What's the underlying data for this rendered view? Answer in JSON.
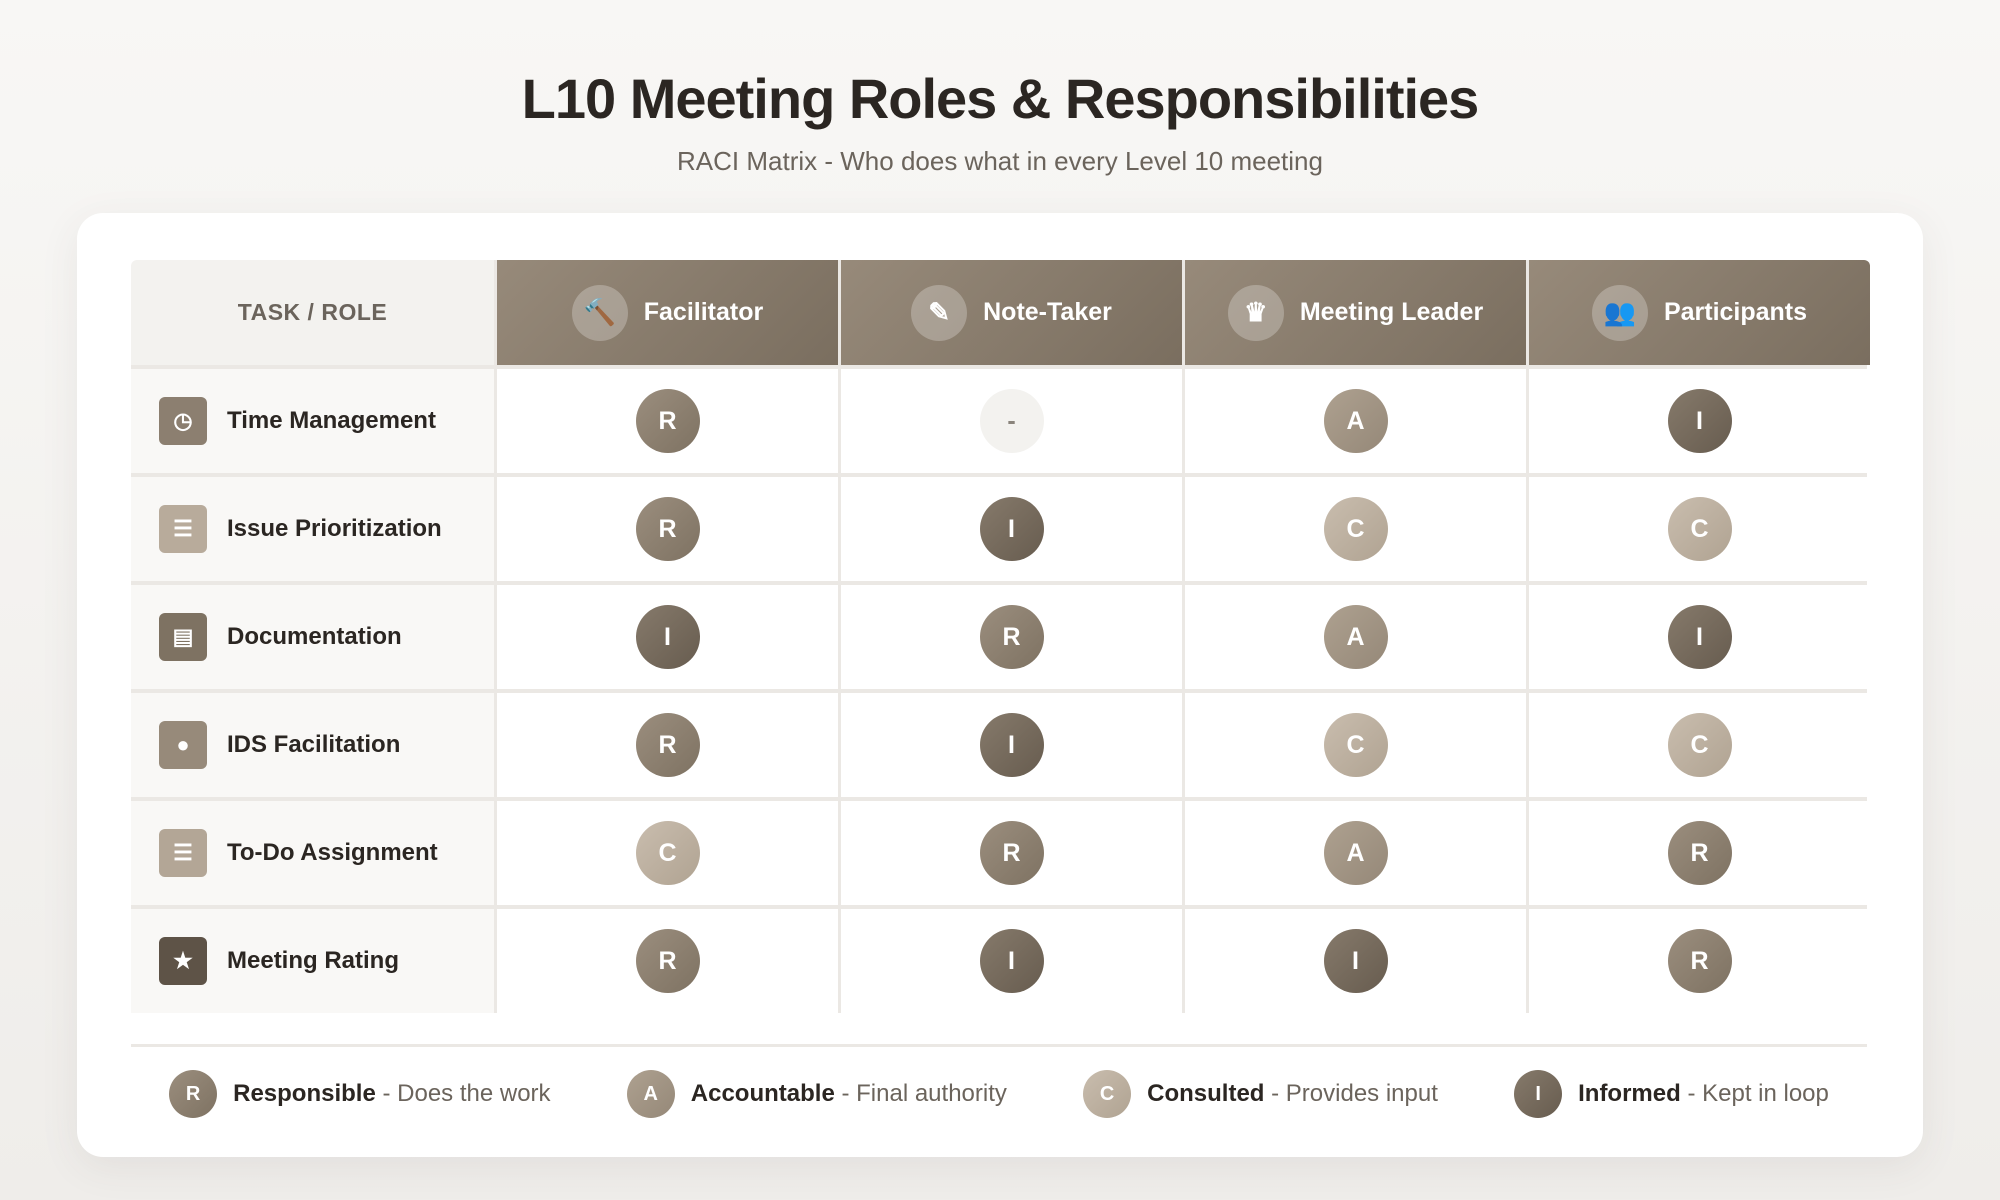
{
  "title": "L10 Meeting Roles & Responsibilities",
  "subtitle": "RACI Matrix - Who does what in every Level 10 meeting",
  "header": {
    "task_label": "TASK / ROLE",
    "roles": [
      {
        "label": "Facilitator",
        "icon": "gavel-icon",
        "glyph": "🔨"
      },
      {
        "label": "Note-Taker",
        "icon": "pencil-icon",
        "glyph": "✎"
      },
      {
        "label": "Meeting Leader",
        "icon": "crown-icon",
        "glyph": "♛"
      },
      {
        "label": "Participants",
        "icon": "users-icon",
        "glyph": "👥"
      }
    ]
  },
  "rows": [
    {
      "task": "Time Management",
      "icon": "clock-icon",
      "glyph": "◷",
      "icon_color": "#8c7f70",
      "values": [
        "R",
        "-",
        "A",
        "I"
      ]
    },
    {
      "task": "Issue Prioritization",
      "icon": "list-ordered-icon",
      "glyph": "☰",
      "icon_color": "#b8ab9b",
      "values": [
        "R",
        "I",
        "C",
        "C"
      ]
    },
    {
      "task": "Documentation",
      "icon": "document-icon",
      "glyph": "▤",
      "icon_color": "#7e7262",
      "values": [
        "I",
        "R",
        "A",
        "I"
      ]
    },
    {
      "task": "IDS Facilitation",
      "icon": "lightbulb-icon",
      "glyph": "●",
      "icon_color": "#978a7a",
      "values": [
        "R",
        "I",
        "C",
        "C"
      ]
    },
    {
      "task": "To-Do Assignment",
      "icon": "checklist-icon",
      "glyph": "☰",
      "icon_color": "#b3a696",
      "values": [
        "C",
        "R",
        "A",
        "R"
      ]
    },
    {
      "task": "Meeting Rating",
      "icon": "star-icon",
      "glyph": "★",
      "icon_color": "#5e5347",
      "values": [
        "R",
        "I",
        "I",
        "R"
      ]
    }
  ],
  "legend": [
    {
      "code": "R",
      "term": "Responsible",
      "desc": "- Does the work"
    },
    {
      "code": "A",
      "term": "Accountable",
      "desc": "- Final authority"
    },
    {
      "code": "C",
      "term": "Consulted",
      "desc": "- Provides input"
    },
    {
      "code": "I",
      "term": "Informed",
      "desc": "- Kept in loop"
    }
  ]
}
